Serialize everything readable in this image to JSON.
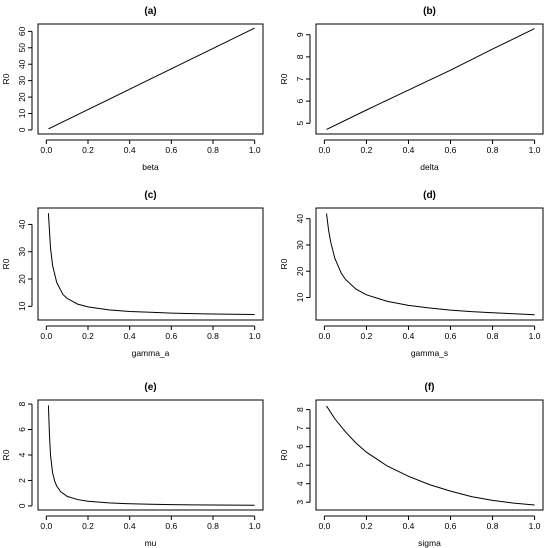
{
  "chart_data": [
    {
      "type": "line",
      "title": "(a)",
      "xlabel": "beta",
      "ylabel": "R0",
      "xlim": [
        0.0,
        1.0
      ],
      "ylim": [
        0,
        62
      ],
      "xticks": [
        0.0,
        0.2,
        0.4,
        0.6,
        0.8,
        1.0
      ],
      "yticks": [
        0,
        10,
        20,
        30,
        40,
        50,
        60
      ],
      "x": [
        0.01,
        0.2,
        0.4,
        0.6,
        0.8,
        1.0
      ],
      "y": [
        0.62,
        12.4,
        24.8,
        37.2,
        49.6,
        62.0
      ],
      "grid": false
    },
    {
      "type": "line",
      "title": "(b)",
      "xlabel": "delta",
      "ylabel": "R0",
      "xlim": [
        0.0,
        1.0
      ],
      "ylim": [
        4.7,
        9.3
      ],
      "xticks": [
        0.0,
        0.2,
        0.4,
        0.6,
        0.8,
        1.0
      ],
      "yticks": [
        5,
        6,
        7,
        8,
        9
      ],
      "x": [
        0.01,
        0.2,
        0.4,
        0.6,
        0.8,
        1.0
      ],
      "y": [
        4.72,
        5.6,
        6.5,
        7.4,
        8.35,
        9.28
      ],
      "grid": false
    },
    {
      "type": "line",
      "title": "(c)",
      "xlabel": "gamma_a",
      "ylabel": "R0",
      "xlim": [
        0.0,
        1.0
      ],
      "ylim": [
        6.5,
        44.5
      ],
      "xticks": [
        0.0,
        0.2,
        0.4,
        0.6,
        0.8,
        1.0
      ],
      "yticks": [
        10,
        20,
        30,
        40
      ],
      "x": [
        0.01,
        0.02,
        0.03,
        0.05,
        0.08,
        0.1,
        0.15,
        0.2,
        0.3,
        0.4,
        0.5,
        0.6,
        0.7,
        0.8,
        0.9,
        1.0
      ],
      "y": [
        44.1,
        31.4,
        25.0,
        18.7,
        14.3,
        12.9,
        10.8,
        9.8,
        8.7,
        8.1,
        7.8,
        7.5,
        7.3,
        7.2,
        7.1,
        7.0
      ],
      "grid": false
    },
    {
      "type": "line",
      "title": "(d)",
      "xlabel": "gamma_s",
      "ylabel": "R0",
      "xlim": [
        0.0,
        1.0
      ],
      "ylim": [
        3.0,
        42.5
      ],
      "xticks": [
        0.0,
        0.2,
        0.4,
        0.6,
        0.8,
        1.0
      ],
      "yticks": [
        10,
        20,
        30,
        40
      ],
      "x": [
        0.01,
        0.02,
        0.03,
        0.05,
        0.08,
        0.1,
        0.15,
        0.2,
        0.3,
        0.4,
        0.5,
        0.6,
        0.7,
        0.8,
        0.9,
        1.0
      ],
      "y": [
        42.0,
        35.6,
        31.1,
        24.8,
        19.3,
        16.9,
        13.2,
        11.0,
        8.5,
        7.0,
        6.0,
        5.2,
        4.6,
        4.2,
        3.8,
        3.4
      ],
      "grid": false
    },
    {
      "type": "line",
      "title": "(e)",
      "xlabel": "mu",
      "ylabel": "R0",
      "xlim": [
        0.0,
        1.0
      ],
      "ylim": [
        0.0,
        8.0
      ],
      "xticks": [
        0.0,
        0.2,
        0.4,
        0.6,
        0.8,
        1.0
      ],
      "yticks": [
        0,
        2,
        4,
        6,
        8
      ],
      "x": [
        0.01,
        0.015,
        0.02,
        0.03,
        0.04,
        0.05,
        0.07,
        0.1,
        0.15,
        0.2,
        0.3,
        0.4,
        0.5,
        0.6,
        0.7,
        0.8,
        0.9,
        1.0
      ],
      "y": [
        7.9,
        5.6,
        4.0,
        2.6,
        1.95,
        1.55,
        1.1,
        0.75,
        0.5,
        0.37,
        0.24,
        0.17,
        0.13,
        0.1,
        0.08,
        0.07,
        0.06,
        0.05
      ],
      "grid": false
    },
    {
      "type": "line",
      "title": "(f)",
      "xlabel": "sigma",
      "ylabel": "R0",
      "xlim": [
        0.0,
        1.0
      ],
      "ylim": [
        2.8,
        8.3
      ],
      "xticks": [
        0.0,
        0.2,
        0.4,
        0.6,
        0.8,
        1.0
      ],
      "yticks": [
        3,
        4,
        5,
        6,
        7,
        8
      ],
      "x": [
        0.01,
        0.05,
        0.1,
        0.15,
        0.2,
        0.3,
        0.4,
        0.5,
        0.6,
        0.7,
        0.8,
        0.9,
        1.0
      ],
      "y": [
        8.2,
        7.5,
        6.8,
        6.2,
        5.7,
        4.95,
        4.4,
        3.95,
        3.6,
        3.3,
        3.1,
        2.95,
        2.85
      ],
      "grid": false
    }
  ]
}
